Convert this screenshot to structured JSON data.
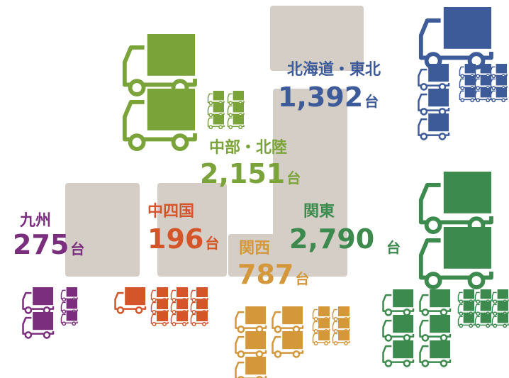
{
  "unit": "台",
  "regions": [
    {
      "name": "北海道・東北",
      "value": 1392,
      "value_label": "1,392",
      "color": "#3d5a99"
    },
    {
      "name": "中部・北陸",
      "value": 2151,
      "value_label": "2,151",
      "color": "#7aa33a"
    },
    {
      "name": "関東",
      "value": 2790,
      "value_label": "2,790",
      "color": "#3d8a4e"
    },
    {
      "name": "関西",
      "value": 787,
      "value_label": "787",
      "color": "#d4973a"
    },
    {
      "name": "中四国",
      "value": 196,
      "value_label": "196",
      "color": "#d4552a"
    },
    {
      "name": "九州",
      "value": 275,
      "value_label": "275",
      "color": "#7b2d7e"
    }
  ]
}
